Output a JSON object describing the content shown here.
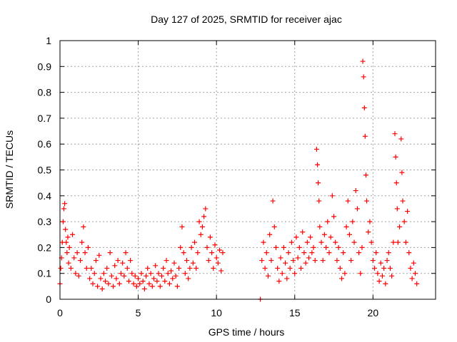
{
  "chart_data": {
    "type": "scatter",
    "title": "Day 127 of 2025, SRMTID for receiver ajac",
    "xlabel": "GPS time / hours",
    "ylabel": "SRMTID / TECUs",
    "xlim": [
      0,
      24
    ],
    "ylim": [
      0,
      1
    ],
    "xticks": [
      0,
      5,
      10,
      15,
      20
    ],
    "xtick_labels": [
      "0",
      "5",
      "10",
      "15",
      "20"
    ],
    "yticks": [
      0,
      0.1,
      0.2,
      0.3,
      0.4,
      0.5,
      0.6,
      0.7,
      0.8,
      0.9,
      1
    ],
    "ytick_labels": [
      "0",
      "0.1",
      "0.2",
      "0.3",
      "0.4",
      "0.5",
      "0.6",
      "0.7",
      "0.8",
      "0.9",
      "1"
    ],
    "grid": true,
    "marker": "+",
    "color": "#ff0000",
    "series": [
      {
        "name": "SRMTID",
        "points": [
          [
            0.0,
            0.06
          ],
          [
            0.05,
            0.12
          ],
          [
            0.1,
            0.16
          ],
          [
            0.15,
            0.22
          ],
          [
            0.2,
            0.3
          ],
          [
            0.25,
            0.35
          ],
          [
            0.3,
            0.37
          ],
          [
            0.35,
            0.27
          ],
          [
            0.4,
            0.22
          ],
          [
            0.45,
            0.18
          ],
          [
            0.5,
            0.24
          ],
          [
            0.55,
            0.14
          ],
          [
            0.6,
            0.2
          ],
          [
            0.7,
            0.12
          ],
          [
            0.8,
            0.25
          ],
          [
            0.9,
            0.16
          ],
          [
            1.0,
            0.1
          ],
          [
            1.1,
            0.18
          ],
          [
            1.2,
            0.09
          ],
          [
            1.3,
            0.15
          ],
          [
            1.4,
            0.22
          ],
          [
            1.5,
            0.28
          ],
          [
            1.6,
            0.18
          ],
          [
            1.7,
            0.12
          ],
          [
            1.8,
            0.2
          ],
          [
            1.9,
            0.08
          ],
          [
            2.0,
            0.12
          ],
          [
            2.1,
            0.06
          ],
          [
            2.2,
            0.1
          ],
          [
            2.3,
            0.15
          ],
          [
            2.4,
            0.05
          ],
          [
            2.5,
            0.17
          ],
          [
            2.6,
            0.08
          ],
          [
            2.7,
            0.04
          ],
          [
            2.8,
            0.1
          ],
          [
            2.9,
            0.07
          ],
          [
            3.0,
            0.12
          ],
          [
            3.1,
            0.06
          ],
          [
            3.2,
            0.18
          ],
          [
            3.3,
            0.09
          ],
          [
            3.4,
            0.05
          ],
          [
            3.5,
            0.13
          ],
          [
            3.6,
            0.08
          ],
          [
            3.7,
            0.15
          ],
          [
            3.8,
            0.06
          ],
          [
            3.9,
            0.1
          ],
          [
            4.0,
            0.14
          ],
          [
            4.1,
            0.09
          ],
          [
            4.2,
            0.18
          ],
          [
            4.3,
            0.12
          ],
          [
            4.4,
            0.07
          ],
          [
            4.5,
            0.15
          ],
          [
            4.6,
            0.1
          ],
          [
            4.7,
            0.06
          ],
          [
            4.8,
            0.09
          ],
          [
            4.9,
            0.05
          ],
          [
            5.0,
            0.08
          ],
          [
            5.1,
            0.06
          ],
          [
            5.2,
            0.1
          ],
          [
            5.3,
            0.07
          ],
          [
            5.4,
            0.04
          ],
          [
            5.5,
            0.09
          ],
          [
            5.6,
            0.12
          ],
          [
            5.7,
            0.06
          ],
          [
            5.8,
            0.1
          ],
          [
            5.9,
            0.05
          ],
          [
            6.0,
            0.08
          ],
          [
            6.1,
            0.13
          ],
          [
            6.2,
            0.07
          ],
          [
            6.3,
            0.1
          ],
          [
            6.4,
            0.05
          ],
          [
            6.5,
            0.09
          ],
          [
            6.6,
            0.12
          ],
          [
            6.7,
            0.07
          ],
          [
            6.8,
            0.15
          ],
          [
            6.9,
            0.1
          ],
          [
            7.0,
            0.06
          ],
          [
            7.1,
            0.11
          ],
          [
            7.2,
            0.08
          ],
          [
            7.3,
            0.14
          ],
          [
            7.4,
            0.09
          ],
          [
            7.5,
            0.05
          ],
          [
            7.6,
            0.12
          ],
          [
            7.7,
            0.2
          ],
          [
            7.8,
            0.28
          ],
          [
            7.9,
            0.18
          ],
          [
            8.0,
            0.1
          ],
          [
            8.1,
            0.15
          ],
          [
            8.2,
            0.08
          ],
          [
            8.3,
            0.12
          ],
          [
            8.4,
            0.2
          ],
          [
            8.5,
            0.14
          ],
          [
            8.6,
            0.22
          ],
          [
            8.7,
            0.12
          ],
          [
            8.8,
            0.18
          ],
          [
            8.9,
            0.3
          ],
          [
            9.0,
            0.25
          ],
          [
            9.1,
            0.28
          ],
          [
            9.2,
            0.32
          ],
          [
            9.3,
            0.35
          ],
          [
            9.4,
            0.2
          ],
          [
            9.5,
            0.15
          ],
          [
            9.6,
            0.24
          ],
          [
            9.7,
            0.18
          ],
          [
            9.8,
            0.12
          ],
          [
            9.9,
            0.21
          ],
          [
            10.0,
            0.16
          ],
          [
            10.1,
            0.14
          ],
          [
            10.2,
            0.19
          ],
          [
            10.3,
            0.11
          ],
          [
            10.4,
            0.18
          ],
          [
            12.8,
            0.0
          ],
          [
            12.9,
            0.15
          ],
          [
            13.0,
            0.22
          ],
          [
            13.1,
            0.12
          ],
          [
            13.2,
            0.18
          ],
          [
            13.3,
            0.09
          ],
          [
            13.4,
            0.25
          ],
          [
            13.5,
            0.15
          ],
          [
            13.6,
            0.38
          ],
          [
            13.7,
            0.28
          ],
          [
            13.8,
            0.2
          ],
          [
            13.9,
            0.12
          ],
          [
            14.0,
            0.07
          ],
          [
            14.1,
            0.16
          ],
          [
            14.2,
            0.1
          ],
          [
            14.3,
            0.2
          ],
          [
            14.4,
            0.14
          ],
          [
            14.5,
            0.08
          ],
          [
            14.6,
            0.18
          ],
          [
            14.7,
            0.12
          ],
          [
            14.8,
            0.22
          ],
          [
            14.9,
            0.15
          ],
          [
            15.0,
            0.1
          ],
          [
            15.1,
            0.24
          ],
          [
            15.2,
            0.16
          ],
          [
            15.3,
            0.2
          ],
          [
            15.4,
            0.12
          ],
          [
            15.5,
            0.26
          ],
          [
            15.6,
            0.18
          ],
          [
            15.7,
            0.14
          ],
          [
            15.8,
            0.22
          ],
          [
            15.9,
            0.16
          ],
          [
            16.0,
            0.24
          ],
          [
            16.1,
            0.18
          ],
          [
            16.2,
            0.2
          ],
          [
            16.3,
            0.15
          ],
          [
            16.4,
            0.58
          ],
          [
            16.45,
            0.52
          ],
          [
            16.5,
            0.45
          ],
          [
            16.55,
            0.38
          ],
          [
            16.6,
            0.28
          ],
          [
            16.7,
            0.22
          ],
          [
            16.8,
            0.15
          ],
          [
            16.9,
            0.25
          ],
          [
            17.0,
            0.2
          ],
          [
            17.1,
            0.3
          ],
          [
            17.2,
            0.18
          ],
          [
            17.3,
            0.24
          ],
          [
            17.4,
            0.4
          ],
          [
            17.5,
            0.32
          ],
          [
            17.6,
            0.22
          ],
          [
            17.7,
            0.15
          ],
          [
            17.8,
            0.2
          ],
          [
            17.9,
            0.12
          ],
          [
            18.0,
            0.08
          ],
          [
            18.1,
            0.18
          ],
          [
            18.2,
            0.1
          ],
          [
            18.3,
            0.28
          ],
          [
            18.4,
            0.38
          ],
          [
            18.5,
            0.25
          ],
          [
            18.6,
            0.15
          ],
          [
            18.7,
            0.3
          ],
          [
            18.8,
            0.22
          ],
          [
            18.9,
            0.42
          ],
          [
            19.0,
            0.35
          ],
          [
            19.1,
            0.18
          ],
          [
            19.2,
            0.1
          ],
          [
            19.3,
            0.2
          ],
          [
            19.35,
            0.92
          ],
          [
            19.4,
            0.86
          ],
          [
            19.45,
            0.74
          ],
          [
            19.5,
            0.63
          ],
          [
            19.55,
            0.48
          ],
          [
            19.6,
            0.38
          ],
          [
            19.7,
            0.26
          ],
          [
            19.8,
            0.3
          ],
          [
            19.9,
            0.22
          ],
          [
            20.0,
            0.15
          ],
          [
            20.1,
            0.12
          ],
          [
            20.2,
            0.18
          ],
          [
            20.3,
            0.1
          ],
          [
            20.4,
            0.07
          ],
          [
            20.5,
            0.14
          ],
          [
            20.6,
            0.09
          ],
          [
            20.7,
            0.12
          ],
          [
            20.8,
            0.06
          ],
          [
            20.9,
            0.15
          ],
          [
            21.0,
            0.18
          ],
          [
            21.1,
            0.12
          ],
          [
            21.2,
            0.09
          ],
          [
            21.3,
            0.22
          ],
          [
            21.4,
            0.64
          ],
          [
            21.45,
            0.55
          ],
          [
            21.5,
            0.45
          ],
          [
            21.55,
            0.35
          ],
          [
            21.6,
            0.22
          ],
          [
            21.7,
            0.28
          ],
          [
            21.8,
            0.62
          ],
          [
            21.85,
            0.49
          ],
          [
            21.9,
            0.38
          ],
          [
            22.0,
            0.3
          ],
          [
            22.1,
            0.22
          ],
          [
            22.2,
            0.34
          ],
          [
            22.3,
            0.18
          ],
          [
            22.4,
            0.12
          ],
          [
            22.5,
            0.08
          ],
          [
            22.6,
            0.14
          ],
          [
            22.7,
            0.1
          ],
          [
            22.8,
            0.06
          ]
        ]
      }
    ]
  }
}
